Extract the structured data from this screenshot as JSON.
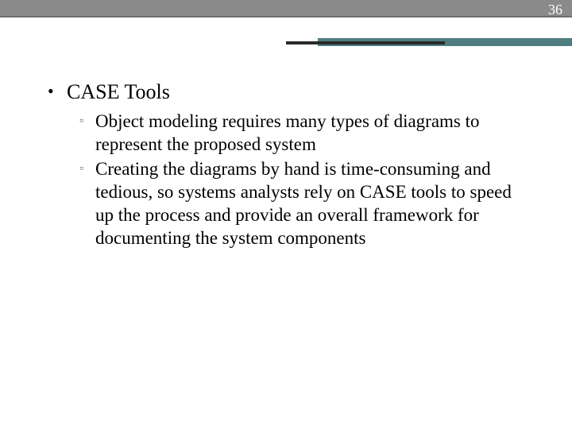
{
  "slide": {
    "page_number": "36",
    "colors": {
      "top_bar": "#8a8a8a",
      "top_bar_border": "#6e6e6e",
      "accent_teal": "#4f7e80",
      "accent_dark": "#2a2a2a",
      "page_number_text": "#ffffff",
      "body_text": "#000000",
      "background": "#ffffff"
    },
    "typography": {
      "title_fontsize_pt": 20,
      "body_fontsize_pt": 17,
      "font_family": "Georgia, serif"
    },
    "bullets": [
      {
        "marker": "•",
        "text": "CASE Tools",
        "sub": [
          {
            "marker": "▫",
            "text": "Object modeling requires many types of diagrams to represent the proposed system"
          },
          {
            "marker": "▫",
            "text": "Creating the diagrams by hand is time-consuming and tedious, so systems analysts rely on CASE tools to speed up the process and provide an overall framework for documenting the system components"
          }
        ]
      }
    ]
  }
}
